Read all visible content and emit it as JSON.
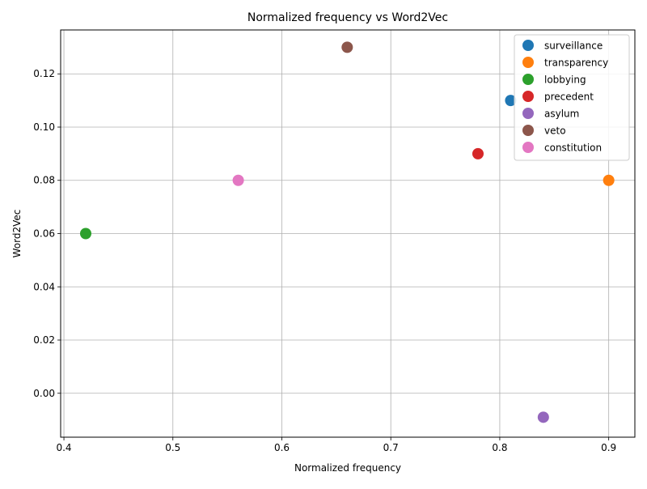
{
  "chart_data": {
    "type": "scatter",
    "title": "Normalized frequency vs Word2Vec",
    "xlabel": "Normalized frequency",
    "ylabel": "Word2Vec",
    "xlim": [
      0.397,
      0.924
    ],
    "ylim": [
      -0.0165,
      0.1365
    ],
    "xticks": [
      0.4,
      0.5,
      0.6,
      0.7,
      0.8,
      0.9
    ],
    "xtick_labels": [
      "0.4",
      "0.5",
      "0.6",
      "0.7",
      "0.8",
      "0.9"
    ],
    "yticks": [
      0.0,
      0.02,
      0.04,
      0.06,
      0.08,
      0.1,
      0.12
    ],
    "ytick_labels": [
      "0.00",
      "0.02",
      "0.04",
      "0.06",
      "0.08",
      "0.10",
      "0.12"
    ],
    "grid": true,
    "legend_position": "top-right",
    "series": [
      {
        "name": "surveillance",
        "color": "#1f77b4",
        "x": [
          0.81
        ],
        "y": [
          0.11
        ]
      },
      {
        "name": "transparency",
        "color": "#ff7f0e",
        "x": [
          0.9
        ],
        "y": [
          0.08
        ]
      },
      {
        "name": "lobbying",
        "color": "#2ca02c",
        "x": [
          0.42
        ],
        "y": [
          0.06
        ]
      },
      {
        "name": "precedent",
        "color": "#d62728",
        "x": [
          0.78
        ],
        "y": [
          0.09
        ]
      },
      {
        "name": "asylum",
        "color": "#9467bd",
        "x": [
          0.84
        ],
        "y": [
          -0.009
        ]
      },
      {
        "name": "veto",
        "color": "#8c564b",
        "x": [
          0.66
        ],
        "y": [
          0.13
        ]
      },
      {
        "name": "constitution",
        "color": "#e377c2",
        "x": [
          0.56
        ],
        "y": [
          0.08
        ]
      }
    ]
  }
}
